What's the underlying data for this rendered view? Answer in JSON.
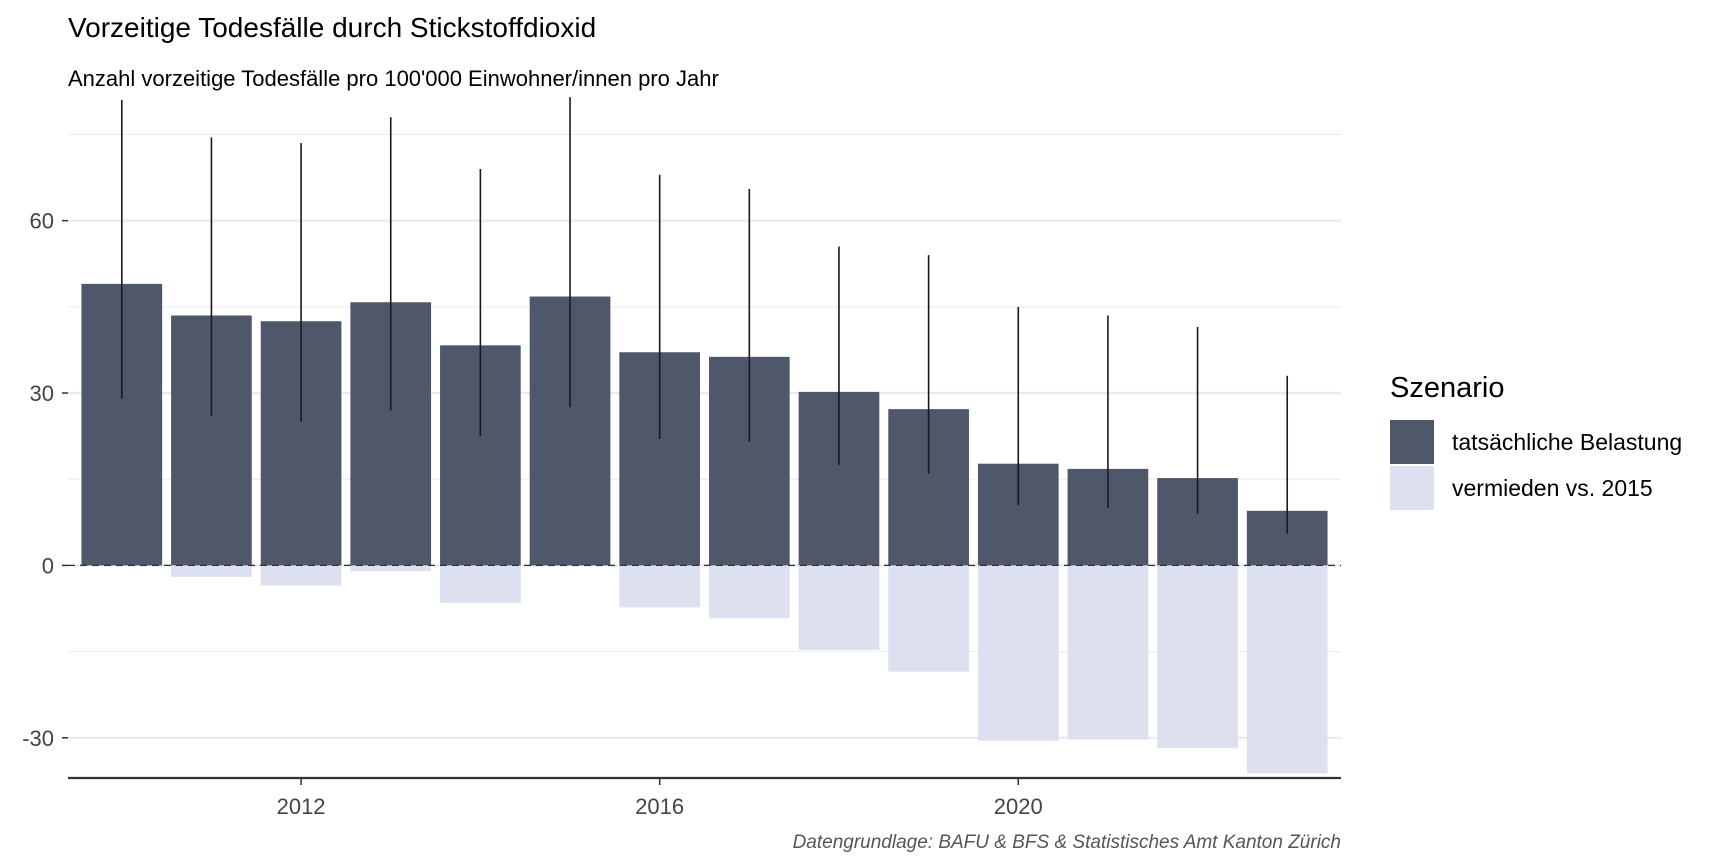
{
  "title": "Vorzeitige Todesfälle durch Stickstoffdioxid",
  "subtitle": "Anzahl vorzeitige Todesfälle pro 100'000 Einwohner/innen pro Jahr",
  "caption": "Datengrundlage: BAFU & BFS & Statistisches Amt Kanton Zürich",
  "colors": {
    "actual": "#4f586b",
    "avoided": "#dde0ef",
    "errorbar": "#1a1a1a",
    "grid": "#ebebeb"
  },
  "chart_data": {
    "type": "bar",
    "stacked": true,
    "x": [
      2010,
      2011,
      2012,
      2013,
      2014,
      2015,
      2016,
      2017,
      2018,
      2019,
      2020,
      2021,
      2022,
      2023
    ],
    "x_ticks": [
      "2012",
      "2016",
      "2020"
    ],
    "y_ticks": [
      "-30",
      "0",
      "30",
      "60"
    ],
    "ylim": [
      -37,
      81
    ],
    "legend_title": "Szenario",
    "legend_position": "right",
    "grid": true,
    "series": [
      {
        "name": "tatsächliche Belastung",
        "values": [
          49,
          43.5,
          42.5,
          45.8,
          38.3,
          46.8,
          37.1,
          36.3,
          30.2,
          27.2,
          17.7,
          16.8,
          15.2,
          9.5
        ],
        "error_low": [
          29,
          26,
          25,
          27,
          22.5,
          27.5,
          22,
          21.5,
          17.5,
          16,
          10.5,
          10,
          9,
          5.5
        ],
        "error_high": [
          81,
          74.5,
          73.5,
          78,
          69,
          81.5,
          68,
          65.5,
          55.5,
          54,
          45,
          43.5,
          41.5,
          33
        ]
      },
      {
        "name": "vermieden vs. 2015",
        "values": [
          0,
          -2,
          -3.5,
          -1,
          -6.5,
          0,
          -7.3,
          -9.2,
          -14.7,
          -18.5,
          -30.5,
          -30.3,
          -31.8,
          -36.2
        ]
      }
    ]
  }
}
